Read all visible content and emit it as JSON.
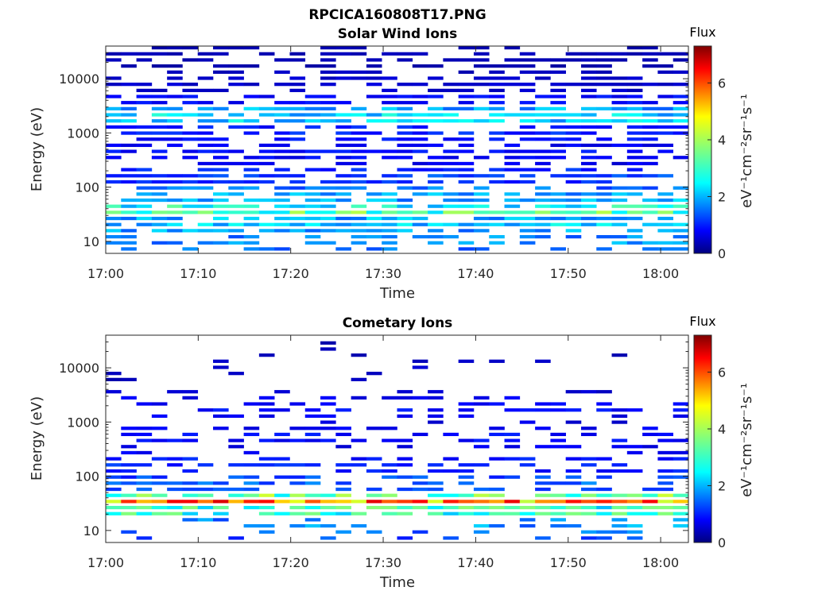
{
  "figure": {
    "title": "RPCICA160808T17.PNG"
  },
  "colormap": {
    "stops": [
      "#00007f",
      "#0000ff",
      "#007fff",
      "#00ffff",
      "#7fff7f",
      "#ffff00",
      "#ff7f00",
      "#ff0000",
      "#7f0000"
    ]
  },
  "chart_data": [
    {
      "type": "heatmap",
      "title": "Solar Wind Ions",
      "xlabel": "Time",
      "ylabel": "Energy (eV)",
      "x_ticks": [
        "17:00",
        "17:10",
        "17:20",
        "17:30",
        "17:40",
        "17:50",
        "18:00"
      ],
      "x_range_min": [
        0,
        63
      ],
      "y_scale": "log",
      "y_ticks": [
        "10",
        "100",
        "1000",
        "10000"
      ],
      "y_range": [
        6,
        40000
      ],
      "colorbar": {
        "label": "Flux",
        "unit": "eV⁻¹cm⁻²sr⁻¹s⁻¹",
        "ticks": [
          "0",
          "2",
          "4",
          "6"
        ],
        "range": [
          0,
          7.3
        ]
      },
      "energy_bands": [
        {
          "energy_eV": 25000,
          "flux": 0.4,
          "coverage": 0.65
        },
        {
          "energy_eV": 8000,
          "flux": 0.6,
          "coverage": 0.7
        },
        {
          "energy_eV": 4000,
          "flux": 1.0,
          "coverage": 0.75
        },
        {
          "energy_eV": 1800,
          "flux": 2.6,
          "coverage": 0.95
        },
        {
          "energy_eV": 1000,
          "flux": 1.2,
          "coverage": 0.8
        },
        {
          "energy_eV": 400,
          "flux": 1.0,
          "coverage": 0.75
        },
        {
          "energy_eV": 150,
          "flux": 1.4,
          "coverage": 0.8
        },
        {
          "energy_eV": 60,
          "flux": 2.2,
          "coverage": 0.85
        },
        {
          "energy_eV": 32,
          "flux": 3.3,
          "coverage": 1.0
        },
        {
          "energy_eV": 20,
          "flux": 2.4,
          "coverage": 0.9
        },
        {
          "energy_eV": 10,
          "flux": 2.1,
          "coverage": 0.6
        }
      ]
    },
    {
      "type": "heatmap",
      "title": "Cometary Ions",
      "xlabel": "Time",
      "ylabel": "Energy (eV)",
      "x_ticks": [
        "17:00",
        "17:10",
        "17:20",
        "17:30",
        "17:40",
        "17:50",
        "18:00"
      ],
      "x_range_min": [
        0,
        63
      ],
      "y_scale": "log",
      "y_ticks": [
        "10",
        "100",
        "1000",
        "10000"
      ],
      "y_range": [
        6,
        40000
      ],
      "colorbar": {
        "label": "Flux",
        "unit": "eV⁻¹cm⁻²sr⁻¹s⁻¹",
        "ticks": [
          "0",
          "2",
          "4",
          "6"
        ],
        "range": [
          0,
          7.3
        ]
      },
      "energy_bands": [
        {
          "energy_eV": 10000,
          "flux": 0.6,
          "coverage": 0.12
        },
        {
          "energy_eV": 1700,
          "flux": 1.0,
          "coverage": 0.45
        },
        {
          "energy_eV": 500,
          "flux": 1.0,
          "coverage": 0.4
        },
        {
          "energy_eV": 150,
          "flux": 1.2,
          "coverage": 0.55
        },
        {
          "energy_eV": 70,
          "flux": 1.6,
          "coverage": 0.7
        },
        {
          "energy_eV": 40,
          "flux": 3.5,
          "coverage": 0.95
        },
        {
          "energy_eV": 30,
          "flux": 5.6,
          "coverage": 1.0
        },
        {
          "energy_eV": 22,
          "flux": 3.2,
          "coverage": 1.0
        },
        {
          "energy_eV": 12,
          "flux": 2.0,
          "coverage": 0.3
        }
      ]
    }
  ]
}
